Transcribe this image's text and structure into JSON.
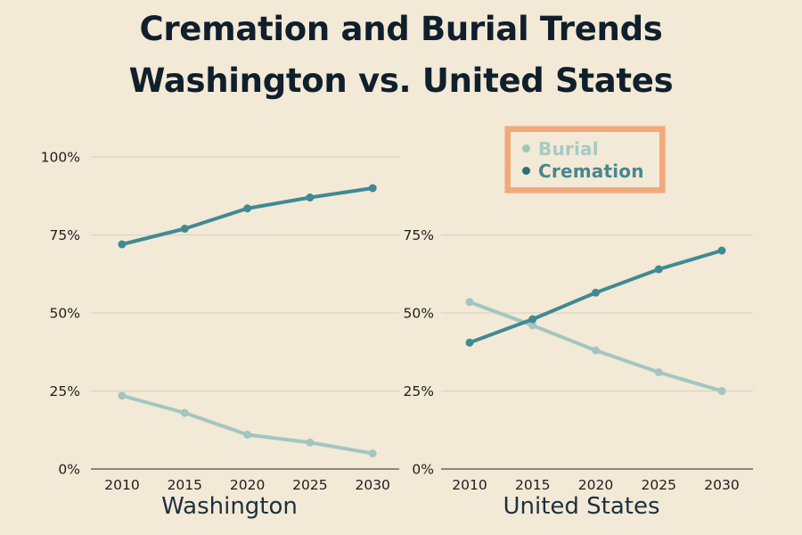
{
  "title": {
    "line1": "Cremation and Burial Trends",
    "line2": "Washington vs. United States"
  },
  "legend": {
    "items": [
      {
        "label": "Burial",
        "bullet_color": "#9ec5c0",
        "text_color": "#a6cac4"
      },
      {
        "label": "Cremation",
        "bullet_color": "#2f6f7a",
        "text_color": "#47878f"
      }
    ],
    "border_color": "#f2a87c",
    "position": "top-right"
  },
  "colors": {
    "background": "#f2e9d6",
    "title_text": "#101f2c",
    "axis_title_text": "#1c3140",
    "tick_text": "#1f1f1f",
    "gridline": "#dcd5c5",
    "axis_line": "#6a685e",
    "burial": "#a2c6c1",
    "cremation": "#3f8a93"
  },
  "chart_data": [
    {
      "type": "line",
      "title": "",
      "xlabel": "Washington",
      "ylabel": "",
      "x": [
        "2010",
        "2015",
        "2020",
        "2025",
        "2030"
      ],
      "yticks": [
        100,
        75,
        50,
        25,
        0
      ],
      "ytick_format": "percent",
      "ylim": [
        0,
        100
      ],
      "grid": true,
      "series": [
        {
          "name": "Burial",
          "values": [
            23.5,
            18,
            11,
            8.5,
            5
          ]
        },
        {
          "name": "Cremation",
          "values": [
            72,
            77,
            83.5,
            87,
            90
          ]
        }
      ]
    },
    {
      "type": "line",
      "title": "",
      "xlabel": "United States",
      "ylabel": "",
      "x": [
        "2010",
        "2015",
        "2020",
        "2025",
        "2030"
      ],
      "yticks": [
        75,
        50,
        25,
        0
      ],
      "ytick_format": "percent",
      "ylim": [
        0,
        75
      ],
      "grid": true,
      "series": [
        {
          "name": "Burial",
          "values": [
            53.5,
            46,
            38,
            31,
            25
          ]
        },
        {
          "name": "Cremation",
          "values": [
            40.5,
            48,
            56.5,
            64,
            70
          ]
        }
      ]
    }
  ]
}
